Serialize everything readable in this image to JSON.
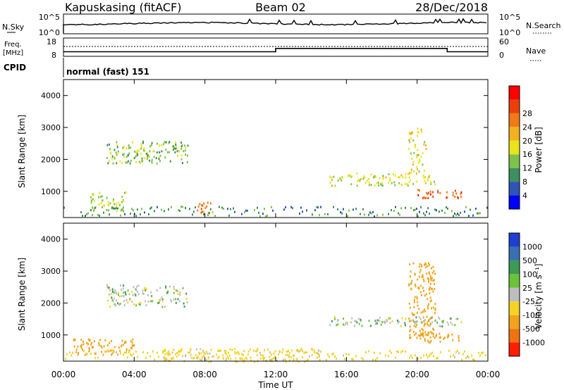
{
  "header": {
    "station": "Kapuskasing (fitACF)",
    "beam": "Beam 02",
    "date": "28/Dec/2018"
  },
  "noise_panel": {
    "left_label": "N.Sky",
    "right_label": "N.Search",
    "left_ticks": [
      "10^5",
      "10^0"
    ],
    "right_ticks": [
      "10^5",
      "10^0"
    ]
  },
  "freq_panel": {
    "left_label_1": "Freq.",
    "left_label_2": "[MHz]",
    "right_label": "Nave",
    "left_ticks": [
      "18",
      "8"
    ],
    "right_ticks": [
      "60",
      "0"
    ]
  },
  "cpid_panel": {
    "label": "CPID",
    "mode": "normal (fast) 151"
  },
  "range_axis": {
    "label": "Slant Range [km]",
    "ticks": [
      "1000",
      "2000",
      "3000",
      "4000"
    ]
  },
  "time_axis": {
    "label": "Time UT",
    "ticks": [
      "00:00",
      "04:00",
      "08:00",
      "12:00",
      "16:00",
      "20:00",
      "00:00"
    ]
  },
  "power_scale": {
    "label": "Power [dB]",
    "ticks": [
      "4",
      "8",
      "12",
      "16",
      "20",
      "24",
      "28"
    ],
    "colors": [
      "#0000ff",
      "#2f55b4",
      "#3e8f5e",
      "#7fc24b",
      "#e8e41c",
      "#f2b11e",
      "#f07a16",
      "#e8400c",
      "#ff0000"
    ]
  },
  "velocity_scale": {
    "label": "Velocity [m s⁻¹]",
    "ticks": [
      "1000",
      "500",
      "100",
      "25",
      "-25",
      "-100",
      "-500",
      "-1000"
    ],
    "colors": [
      "#1f3fd0",
      "#3a6fb0",
      "#3c9a55",
      "#6cc23a",
      "#bdbdbd",
      "#f6d223",
      "#f2a31c",
      "#f07312",
      "#ff1e00"
    ]
  },
  "chart_data": {
    "type": "heatmap",
    "x_range_hours": [
      0,
      24
    ],
    "y_range_km": [
      180,
      4500
    ],
    "frequency_mhz": [
      {
        "t": 0,
        "f": 10.5
      },
      {
        "t": 12,
        "f": 10.5
      },
      {
        "t": 12,
        "f": 12.3
      },
      {
        "t": 21.7,
        "f": 12.3
      },
      {
        "t": 21.7,
        "f": 10.5
      },
      {
        "t": 24,
        "f": 10.5
      }
    ],
    "power_regions": [
      {
        "t0": 2.4,
        "t1": 7.0,
        "r0": 1900,
        "r1": 2600,
        "val": 14
      },
      {
        "t0": 1.5,
        "t1": 3.5,
        "r0": 400,
        "r1": 1000,
        "val": 16
      },
      {
        "t0": 15.0,
        "t1": 21.0,
        "r0": 1200,
        "r1": 1600,
        "val": 17
      },
      {
        "t0": 20.0,
        "t1": 22.5,
        "r0": 800,
        "r1": 1100,
        "val": 29
      },
      {
        "t0": 7.5,
        "t1": 8.5,
        "r0": 300,
        "r1": 700,
        "val": 26
      },
      {
        "t0": 19.5,
        "t1": 20.5,
        "r0": 1600,
        "r1": 3000,
        "val": 18
      }
    ],
    "velocity_regions": [
      {
        "t0": 2.4,
        "t1": 7.0,
        "r0": 1900,
        "r1": 2600,
        "val": 0
      },
      {
        "t0": 0.5,
        "t1": 4.0,
        "r0": 400,
        "r1": 900,
        "val": -200
      },
      {
        "t0": 15.0,
        "t1": 22.5,
        "r0": 1300,
        "r1": 1600,
        "val": 0
      },
      {
        "t0": 19.5,
        "t1": 21.0,
        "r0": 900,
        "r1": 3300,
        "val": -400
      },
      {
        "t0": 20.0,
        "t1": 22.5,
        "r0": 800,
        "r1": 1100,
        "val": -300
      },
      {
        "t0": 5.5,
        "t1": 14.5,
        "r0": 180,
        "r1": 600,
        "val": -50
      }
    ]
  }
}
